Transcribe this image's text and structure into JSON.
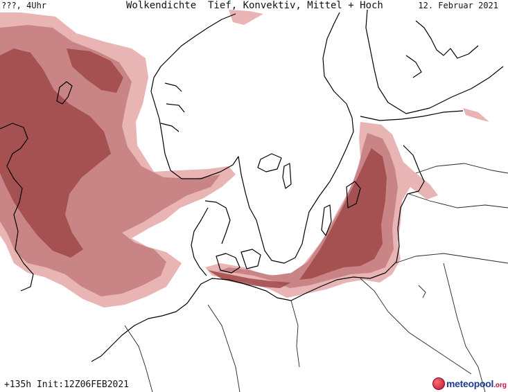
{
  "header": {
    "left": "???, 4Uhr",
    "title": "Wolkendichte  Tief, Konvektiv, Mittel + Hoch",
    "date": "12. Februar 2021"
  },
  "footer": {
    "forecast": "+135h Init:12Z06FEB2021"
  },
  "logo": {
    "brand": "meteopool",
    "tld": ".org"
  },
  "colors": {
    "cloud_light": "#e8b4b4",
    "cloud_mid": "#c98585",
    "cloud_dark": "#a04848",
    "coastline": "#000000",
    "borders": "#333333"
  }
}
